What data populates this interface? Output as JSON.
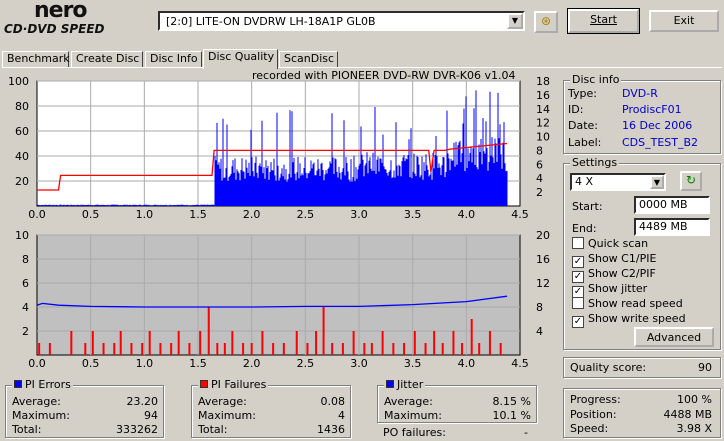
{
  "app": {
    "logo_top": "nero",
    "logo_bottom": "CD·DVD SPEED",
    "drive": "[2:0]  LITE-ON DVDRW LH-18A1P GL0B",
    "start_label": "Start",
    "exit_label": "Exit",
    "colors": {
      "pie": "#0000ff",
      "pif": "#ff0000",
      "read": "#ff0000",
      "jitter": "#0000ff",
      "grid": "#aaaaaa"
    }
  },
  "tabs": [
    {
      "label": "Benchmark"
    },
    {
      "label": "Create Disc"
    },
    {
      "label": "Disc Info"
    },
    {
      "label": "Disc Quality",
      "active": true
    },
    {
      "label": "ScanDisc"
    }
  ],
  "recorded_with": "recorded with PIONEER DVD-RW  DVR-K06  v1.04",
  "chart_data": [
    {
      "type": "bar",
      "name": "PIE chart",
      "x_ticks": [
        "0.0",
        "0.5",
        "1.0",
        "1.5",
        "2.0",
        "2.5",
        "3.0",
        "3.5",
        "4.0",
        "4.5"
      ],
      "y_left_ticks": [
        "100",
        "80",
        "60",
        "40",
        "20"
      ],
      "y_right_ticks": [
        "18",
        "16",
        "14",
        "12",
        "10",
        "8",
        "6",
        "4",
        "2"
      ],
      "xlim": [
        0,
        4.5
      ],
      "ylim_left": [
        0,
        100
      ],
      "ylim_right": [
        0,
        18
      ],
      "pie_bands": [
        {
          "x_start": 0.0,
          "x_end": 1.65,
          "level": 1
        },
        {
          "x_start": 1.65,
          "x_end": 3.0,
          "level": 35
        },
        {
          "x_start": 3.0,
          "x_end": 3.85,
          "level": 38
        },
        {
          "x_start": 3.85,
          "x_end": 4.38,
          "level": 50
        }
      ],
      "read_speed": [
        [
          0.0,
          2.3
        ],
        [
          0.2,
          2.3
        ],
        [
          0.22,
          4.4
        ],
        [
          1.63,
          4.4
        ],
        [
          1.65,
          8.0
        ],
        [
          3.65,
          8.0
        ],
        [
          3.67,
          4.9
        ],
        [
          3.7,
          8.0
        ],
        [
          3.8,
          8.0
        ],
        [
          3.85,
          8.2
        ],
        [
          4.38,
          9.0
        ]
      ]
    },
    {
      "type": "bar",
      "name": "PIF chart",
      "x_ticks": [
        "0.0",
        "0.5",
        "1.0",
        "1.5",
        "2.0",
        "2.5",
        "3.0",
        "3.5",
        "4.0",
        "4.5"
      ],
      "y_left_ticks": [
        "10",
        "8",
        "6",
        "4",
        "2"
      ],
      "y_right_ticks": [
        "20",
        "16",
        "12",
        "8",
        "4"
      ],
      "xlim": [
        0,
        4.5
      ],
      "ylim_left": [
        0,
        10
      ],
      "ylim_right": [
        0,
        20
      ],
      "pif_spikes": [
        [
          0.02,
          1
        ],
        [
          0.12,
          1
        ],
        [
          0.32,
          2
        ],
        [
          0.45,
          1
        ],
        [
          0.52,
          2
        ],
        [
          0.62,
          1
        ],
        [
          0.72,
          1
        ],
        [
          0.78,
          2
        ],
        [
          0.88,
          1
        ],
        [
          0.98,
          1
        ],
        [
          1.05,
          2
        ],
        [
          1.15,
          1
        ],
        [
          1.25,
          1
        ],
        [
          1.32,
          2
        ],
        [
          1.42,
          1
        ],
        [
          1.52,
          2
        ],
        [
          1.6,
          4
        ],
        [
          1.68,
          1
        ],
        [
          1.75,
          1
        ],
        [
          1.82,
          2
        ],
        [
          1.92,
          1
        ],
        [
          2.0,
          1
        ],
        [
          2.1,
          2
        ],
        [
          2.2,
          1
        ],
        [
          2.3,
          1
        ],
        [
          2.42,
          2
        ],
        [
          2.52,
          1
        ],
        [
          2.6,
          2
        ],
        [
          2.67,
          4
        ],
        [
          2.75,
          1
        ],
        [
          2.85,
          1
        ],
        [
          2.95,
          2
        ],
        [
          3.05,
          1
        ],
        [
          3.12,
          1
        ],
        [
          3.22,
          2
        ],
        [
          3.32,
          1
        ],
        [
          3.42,
          1
        ],
        [
          3.52,
          2
        ],
        [
          3.62,
          1
        ],
        [
          3.7,
          2
        ],
        [
          3.78,
          1
        ],
        [
          3.88,
          2
        ],
        [
          3.96,
          1
        ],
        [
          4.05,
          3
        ],
        [
          4.12,
          1
        ],
        [
          4.22,
          2
        ],
        [
          4.32,
          1
        ]
      ],
      "jitter": [
        [
          0.0,
          8.3
        ],
        [
          0.05,
          8.6
        ],
        [
          0.2,
          8.3
        ],
        [
          0.5,
          8.1
        ],
        [
          1.0,
          8.0
        ],
        [
          1.5,
          8.0
        ],
        [
          2.0,
          8.0
        ],
        [
          2.5,
          8.1
        ],
        [
          3.0,
          8.1
        ],
        [
          3.5,
          8.4
        ],
        [
          4.0,
          8.9
        ],
        [
          4.38,
          9.8
        ]
      ]
    }
  ],
  "disc_info": {
    "title": "Disc info",
    "rows": [
      {
        "label": "Type:",
        "value": "DVD-R"
      },
      {
        "label": "ID:",
        "value": "ProdiscF01"
      },
      {
        "label": "Date:",
        "value": "16 Dec 2006"
      },
      {
        "label": "Label:",
        "value": "CDS_TEST_B2"
      }
    ]
  },
  "settings": {
    "title": "Settings",
    "speed": "4 X",
    "start_label": "Start:",
    "start_value": "0000 MB",
    "end_label": "End:",
    "end_value": "4489 MB",
    "checks": [
      {
        "label": "Quick scan",
        "checked": false
      },
      {
        "label": "Show C1/PIE",
        "checked": true
      },
      {
        "label": "Show C2/PIF",
        "checked": true
      },
      {
        "label": "Show jitter",
        "checked": true
      },
      {
        "label": "Show read speed",
        "checked": false
      },
      {
        "label": "Show write speed",
        "checked": true
      }
    ],
    "advanced_label": "Advanced"
  },
  "quality": {
    "label": "Quality score:",
    "value": "90"
  },
  "progress": {
    "rows": [
      {
        "label": "Progress:",
        "value": "100 %"
      },
      {
        "label": "Position:",
        "value": "4488 MB"
      },
      {
        "label": "Speed:",
        "value": "3.98 X"
      }
    ]
  },
  "pi_errors": {
    "title": "PI Errors",
    "rows": [
      {
        "label": "Average:",
        "value": "23.20"
      },
      {
        "label": "Maximum:",
        "value": "94"
      },
      {
        "label": "Total:",
        "value": "333262"
      }
    ]
  },
  "pi_failures": {
    "title": "PI Failures",
    "rows": [
      {
        "label": "Average:",
        "value": "0.08"
      },
      {
        "label": "Maximum:",
        "value": "4"
      },
      {
        "label": "Total:",
        "value": "1436"
      }
    ]
  },
  "jitter": {
    "title": "Jitter",
    "rows": [
      {
        "label": "Average:",
        "value": "8.15 %"
      },
      {
        "label": "Maximum:",
        "value": "10.1 %"
      }
    ]
  },
  "po_failures": {
    "label": "PO failures:",
    "value": "-"
  }
}
